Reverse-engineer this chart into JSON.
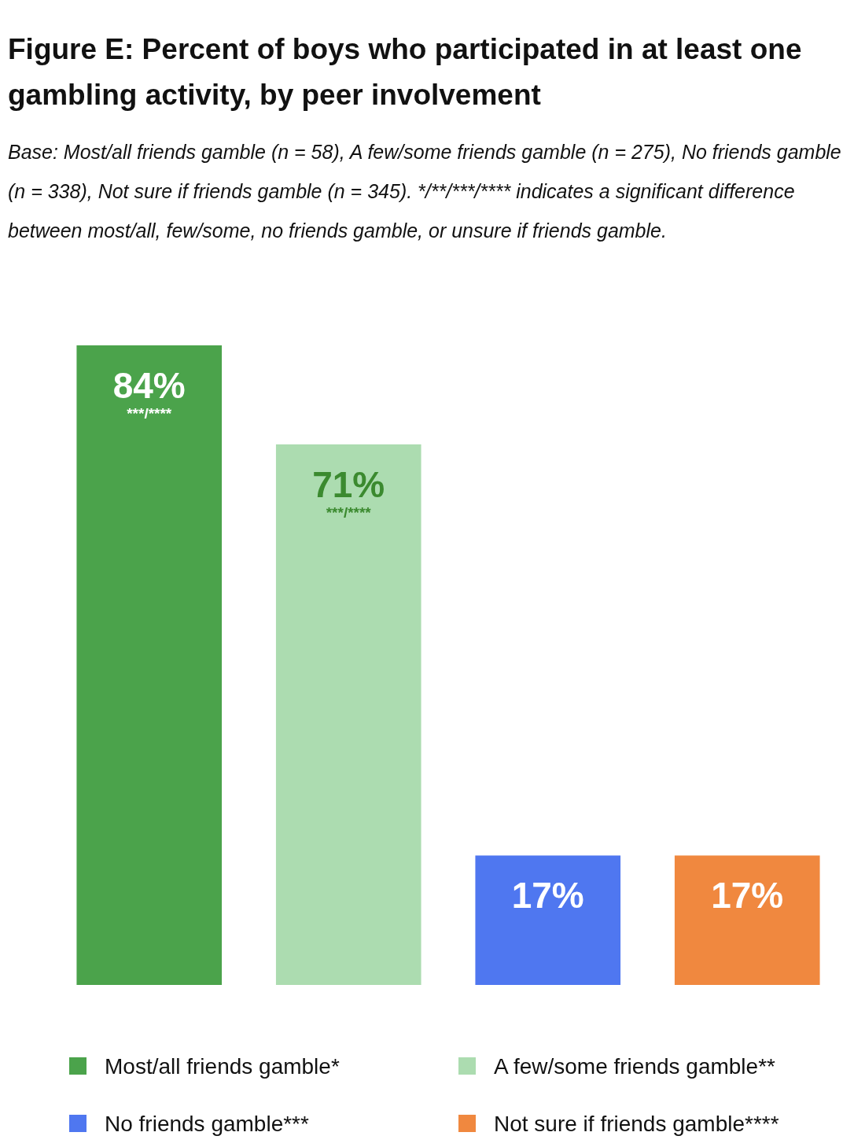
{
  "chart_data": {
    "type": "bar",
    "title": "Figure E: Percent of boys who participated in at least one gambling activity, by peer involvement",
    "subtitle": "Base: Most/all friends gamble (n = 58), A few/some friends gamble (n = 275), No friends gamble (n = 338), Not sure if friends gamble (n = 345). */**/***/**** indicates a significant difference between most/all, few/some, no friends gamble, or unsure if friends gamble.",
    "categories": [
      null,
      null,
      null,
      null
    ],
    "stacked": true,
    "series": [
      {
        "name": "Most/all friends gamble*",
        "color": "#4ba34b",
        "values": [
          84,
          null,
          null,
          null
        ],
        "value_labels": [
          "84%",
          null,
          null,
          null
        ]
      },
      {
        "name": "A few/some friends gamble**",
        "color": "#acdcb0",
        "values": [
          null,
          71,
          null,
          null
        ],
        "value_labels": [
          null,
          "71%",
          null,
          null
        ]
      },
      {
        "name": "No friends gamble***",
        "color": "#4f77f0",
        "values": [
          null,
          null,
          17,
          null
        ],
        "value_labels": [
          null,
          null,
          "17%",
          null
        ]
      },
      {
        "name": "Not sure if friends gamble****",
        "color": "#f0883f",
        "values": [
          null,
          null,
          null,
          17
        ],
        "value_labels": [
          null,
          null,
          null,
          "17%"
        ]
      }
    ],
    "annotations": [
      "***/****",
      "***/****"
    ],
    "legend": "bottom"
  }
}
